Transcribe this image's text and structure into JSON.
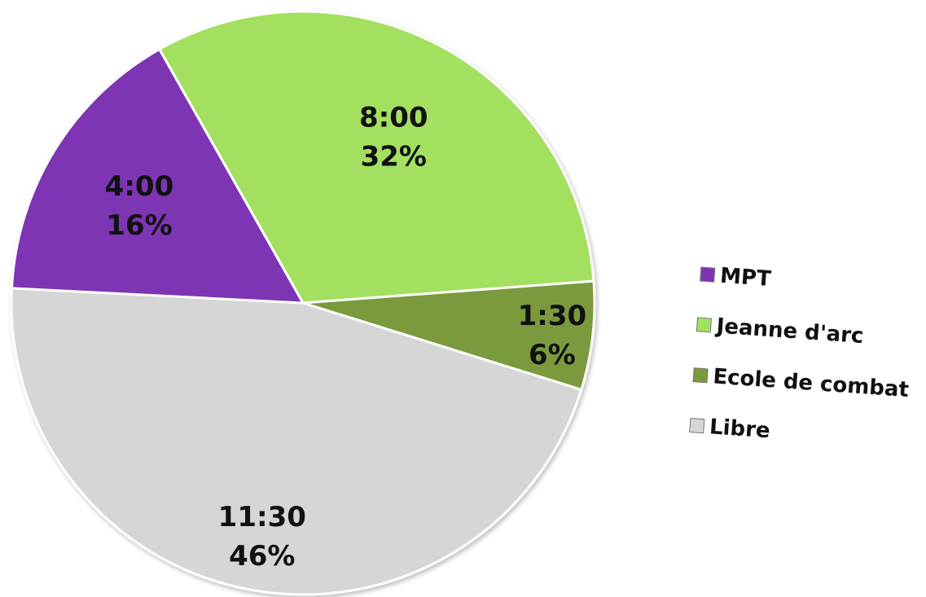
{
  "chart_data": {
    "type": "pie",
    "slices": [
      {
        "category": "Jeanne d'arc",
        "duration": "8:00",
        "percent": 32,
        "percent_label": "32%",
        "color": "#a3e05f"
      },
      {
        "category": "Ecole de combat",
        "duration": "1:30",
        "percent": 6,
        "percent_label": "6%",
        "color": "#7a9a3e"
      },
      {
        "category": "Libre",
        "duration": "11:30",
        "percent": 46,
        "percent_label": "46%",
        "color": "#d6d6d6"
      },
      {
        "category": "MPT",
        "duration": "4:00",
        "percent": 16,
        "percent_label": "16%",
        "color": "#7d34b4"
      }
    ],
    "legend": {
      "position": "right",
      "items": [
        {
          "label": "MPT",
          "color": "#7d34b4"
        },
        {
          "label": "Jeanne d'arc",
          "color": "#a3e05f"
        },
        {
          "label": "Ecole de combat",
          "color": "#7a9a3e"
        },
        {
          "label": "Libre",
          "color": "#d6d6d6"
        }
      ]
    }
  }
}
